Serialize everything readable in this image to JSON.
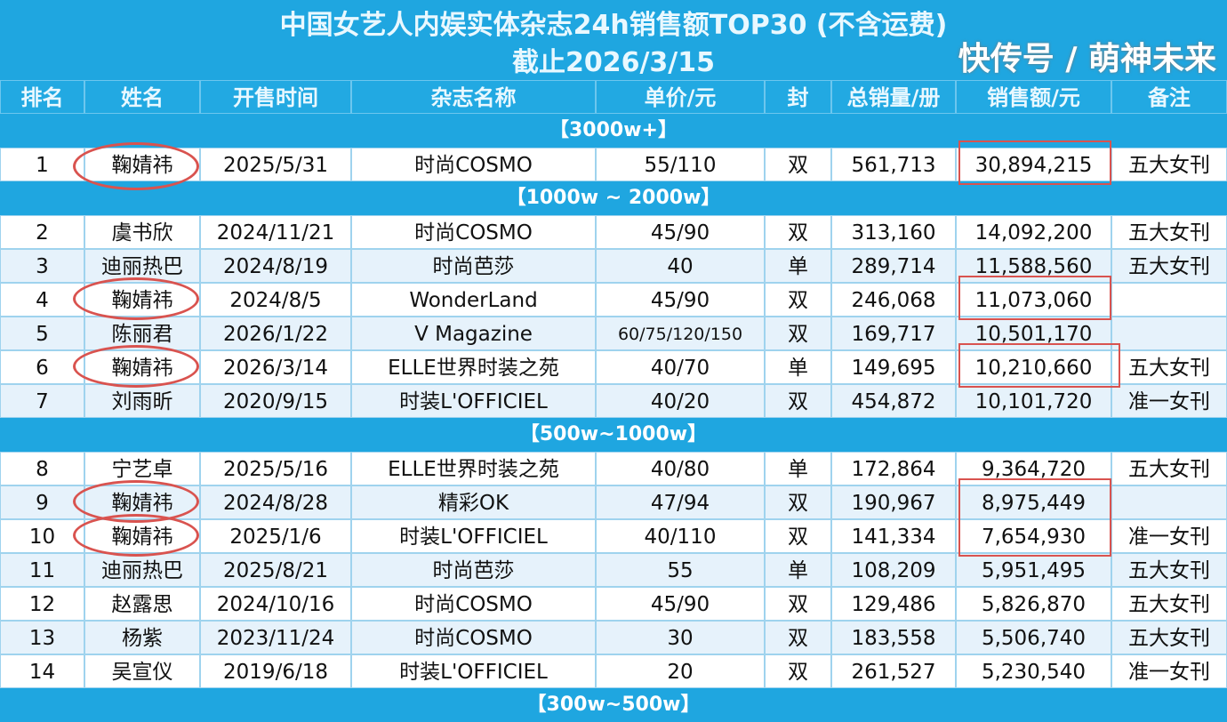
{
  "title": "中国女艺人内娱实体杂志24h销售额TOP30 (不含运费)",
  "subtitle": "截止2026/3/15",
  "headers": [
    "排名",
    "姓名",
    "开售时间",
    "杂志名称",
    "单价/元",
    "封",
    "总销量/册",
    "销售额/元",
    "备注"
  ],
  "sections": [
    "【3000w+】",
    "【1000w ~ 2000w】",
    "【500w~1000w】",
    "【300w~500w】"
  ],
  "rows": [
    [
      "1",
      "鞠婧祎",
      "2025/5/31",
      "时尚COSMO",
      "55/110",
      "双",
      "561,713",
      "30,894,215",
      "五大女刊"
    ],
    [
      "2",
      "虞书欣",
      "2024/11/21",
      "时尚COSMO",
      "45/90",
      "双",
      "313,160",
      "14,092,200",
      "五大女刊"
    ],
    [
      "3",
      "迪丽热巴",
      "2024/8/19",
      "时尚芭莎",
      "40",
      "单",
      "289,714",
      "11,588,560",
      "五大女刊"
    ],
    [
      "4",
      "鞠婧祎",
      "2024/8/5",
      "WonderLand",
      "45/90",
      "双",
      "246,068",
      "11,073,060",
      ""
    ],
    [
      "5",
      "陈丽君",
      "2026/1/22",
      "V Magazine",
      "60/75/120/150",
      "双",
      "169,717",
      "10,501,170",
      ""
    ],
    [
      "6",
      "鞠婧祎",
      "2026/3/14",
      "ELLE世界时装之苑",
      "40/70",
      "单",
      "149,695",
      "10,210,660",
      "五大女刊"
    ],
    [
      "7",
      "刘雨昕",
      "2020/9/15",
      "时装L'OFFICIEL",
      "40/20",
      "双",
      "454,872",
      "10,101,720",
      "准一女刊"
    ],
    [
      "8",
      "宁艺卓",
      "2025/5/16",
      "ELLE世界时装之苑",
      "40/80",
      "单",
      "172,864",
      "9,364,720",
      "五大女刊"
    ],
    [
      "9",
      "鞠婧祎",
      "2024/8/28",
      "精彩OK",
      "47/94",
      "双",
      "190,967",
      "8,975,449",
      ""
    ],
    [
      "10",
      "鞠婧祎",
      "2025/1/6",
      "时装L'OFFICIEL",
      "40/110",
      "双",
      "141,334",
      "7,654,930",
      "准一女刊"
    ],
    [
      "11",
      "迪丽热巴",
      "2025/8/21",
      "时尚芭莎",
      "55",
      "单",
      "108,209",
      "5,951,495",
      "五大女刊"
    ],
    [
      "12",
      "赵露思",
      "2024/10/16",
      "时尚COSMO",
      "45/90",
      "双",
      "129,486",
      "5,826,870",
      "五大女刊"
    ],
    [
      "13",
      "杨紫",
      "2023/11/24",
      "时尚COSMO",
      "30",
      "双",
      "183,558",
      "5,506,740",
      "五大女刊"
    ],
    [
      "14",
      "吴宣仪",
      "2019/6/18",
      "时装L'OFFICIEL",
      "20",
      "双",
      "261,527",
      "5,230,540",
      "准一女刊"
    ]
  ],
  "watermark": "快传号 / 萌神未来",
  "colors": {
    "header_bg": "#1fa6e0",
    "highlight": "#d9534f",
    "alt_row": "#e6f2fb"
  }
}
